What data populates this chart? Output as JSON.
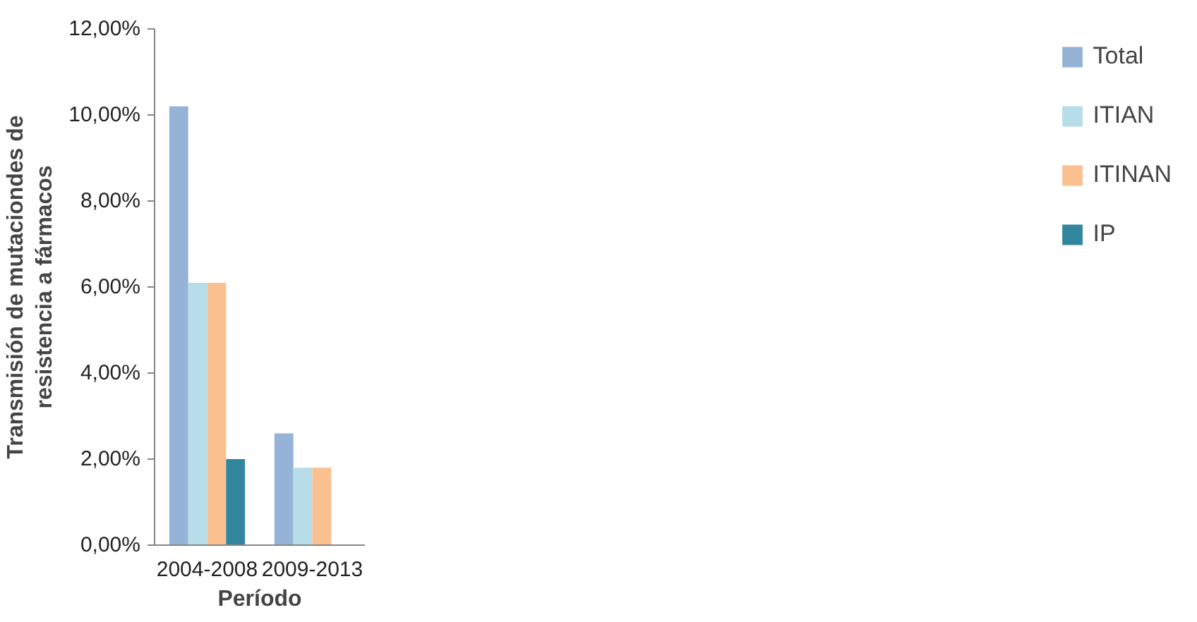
{
  "chart_data": {
    "type": "bar",
    "xlabel": "Período",
    "ylabel": "Transmisión de mutaciondes de\nresistencia a fármacos",
    "categories": [
      "2004-2008",
      "2009-2013"
    ],
    "series": [
      {
        "name": "Total",
        "color": "#95b3d7",
        "values": [
          10.2,
          2.6
        ]
      },
      {
        "name": "ITIAN",
        "color": "#b7dde8",
        "values": [
          6.1,
          1.8
        ]
      },
      {
        "name": "ITINAN",
        "color": "#fac090",
        "values": [
          6.1,
          1.8
        ]
      },
      {
        "name": "IP",
        "color": "#31859c",
        "values": [
          2.0,
          null
        ]
      }
    ],
    "ylim": [
      0,
      12
    ],
    "yticks": [
      {
        "value": 0,
        "label": "0,00%"
      },
      {
        "value": 2,
        "label": "2,00%"
      },
      {
        "value": 4,
        "label": "4,00%"
      },
      {
        "value": 6,
        "label": "6,00%"
      },
      {
        "value": 8,
        "label": "8,00%"
      },
      {
        "value": 10,
        "label": "10,00%"
      },
      {
        "value": 12,
        "label": "12,00%"
      }
    ],
    "grid": false,
    "legend": "right"
  }
}
